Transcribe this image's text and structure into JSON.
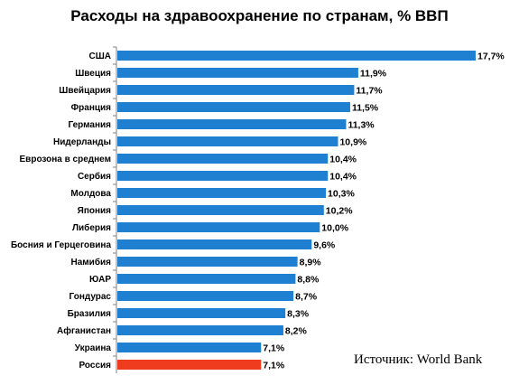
{
  "chart_data": {
    "type": "bar",
    "orientation": "horizontal",
    "title": "Расходы на здравоохранение по странам, % ВВП",
    "categories": [
      "США",
      "Швеция",
      "Швейцария",
      "Франция",
      "Германия",
      "Нидерланды",
      "Еврозона в среднем",
      "Сербия",
      "Молдова",
      "Япония",
      "Либерия",
      "Босния и Герцеговина",
      "Намибия",
      "ЮАР",
      "Гондурас",
      "Бразилия",
      "Афганистан",
      "Украина",
      "Россия"
    ],
    "values": [
      17.7,
      11.9,
      11.7,
      11.5,
      11.3,
      10.9,
      10.4,
      10.4,
      10.3,
      10.2,
      10.0,
      9.6,
      8.9,
      8.8,
      8.7,
      8.3,
      8.2,
      7.1,
      7.1
    ],
    "value_labels": [
      "17,7%",
      "11,9%",
      "11,7%",
      "11,5%",
      "11,3%",
      "10,9%",
      "10,4%",
      "10,4%",
      "10,3%",
      "10,2%",
      "10,0%",
      "9,6%",
      "8,9%",
      "8,8%",
      "8,7%",
      "8,3%",
      "8,2%",
      "7,1%",
      "7,1%"
    ],
    "xlim": [
      0,
      17.7
    ],
    "grid": false,
    "legend": "none",
    "bar_color": "#1f7fd0",
    "highlight_color": "#f03c1e",
    "highlight_category": "Россия",
    "axis_color": "#808080"
  },
  "source_text": "Источник: World Bank"
}
